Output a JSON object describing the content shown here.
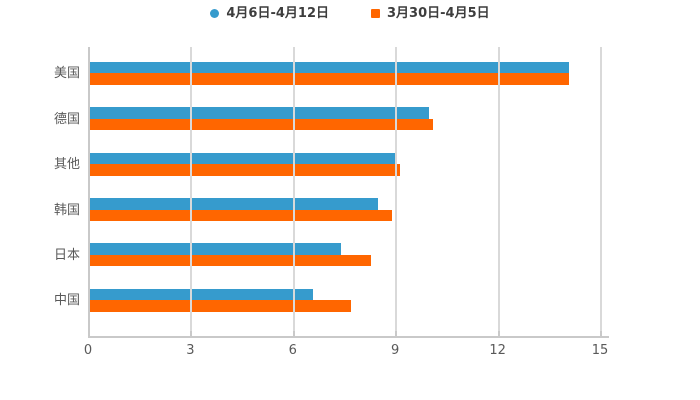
{
  "legend": {
    "items": [
      {
        "label": "4月6日-4月12日",
        "color": "#369bcd",
        "shape": "circle"
      },
      {
        "label": "3月30日-4月5日",
        "color": "#ff6600",
        "shape": "square"
      }
    ]
  },
  "chart_data": {
    "type": "bar",
    "orientation": "horizontal",
    "title": "",
    "xlabel": "",
    "ylabel": "",
    "categories": [
      "美国",
      "德国",
      "其他",
      "韩国",
      "日本",
      "中国"
    ],
    "series": [
      {
        "name": "4月6日-4月12日",
        "color": "#369bcd",
        "values": [
          14.1,
          10.0,
          9.05,
          8.5,
          7.4,
          6.6
        ]
      },
      {
        "name": "3月30日-4月5日",
        "color": "#ff6600",
        "values": [
          14.1,
          10.1,
          9.15,
          8.9,
          8.3,
          7.7
        ]
      }
    ],
    "xlim": [
      0,
      15
    ],
    "x_ticks": [
      "0",
      "3",
      "6",
      "9",
      "12",
      "15"
    ],
    "grid": true,
    "gridline_color": "#d9d9d9",
    "legend_position": "top-center"
  },
  "colors": {
    "background": "#ffffff",
    "axis": "#c9c9c9",
    "grid": "#d9d9d9",
    "tick_text": "#595959",
    "category_text": "#595959",
    "legend_text": "#3d3d3d"
  }
}
